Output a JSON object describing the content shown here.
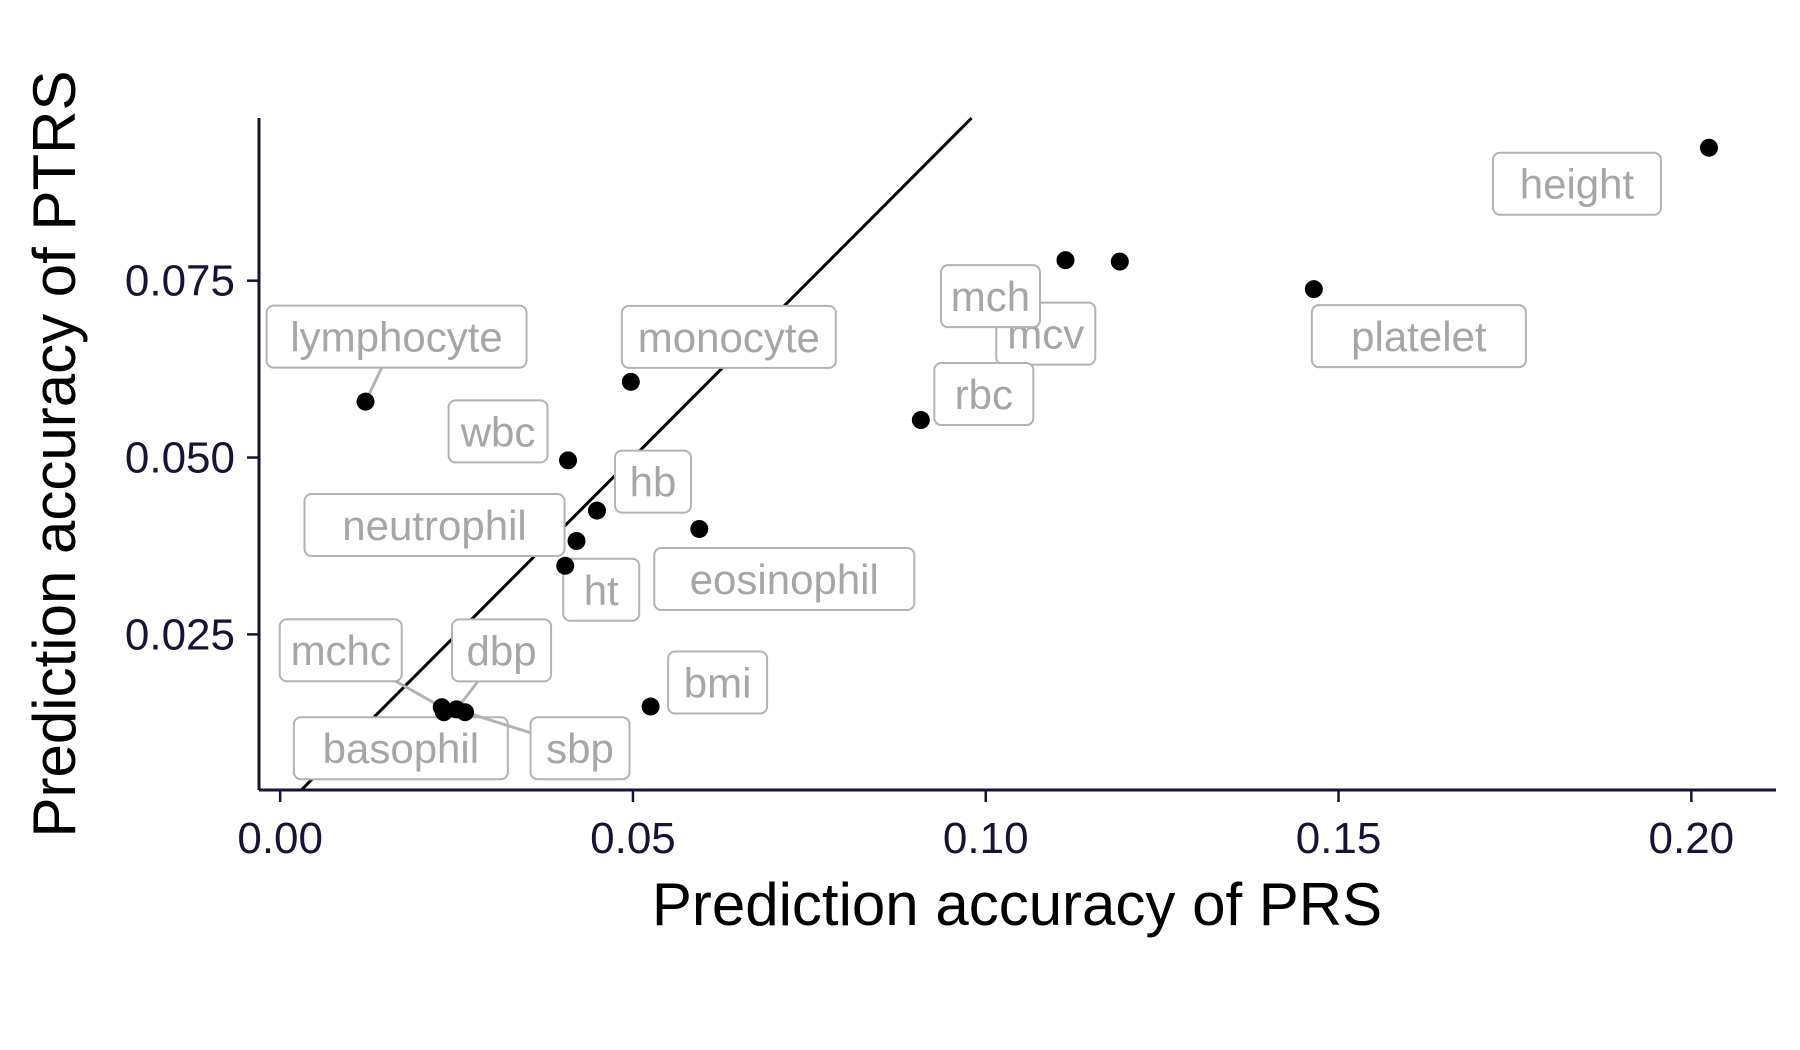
{
  "chart_data": {
    "type": "scatter",
    "xlabel": "Prediction accuracy of PRS",
    "ylabel": "Prediction accuracy of PTRS",
    "xlim": [
      -0.003,
      0.212
    ],
    "ylim": [
      0.003,
      0.098
    ],
    "x_ticks": [
      {
        "value": 0.0,
        "label": "0.00"
      },
      {
        "value": 0.05,
        "label": "0.05"
      },
      {
        "value": 0.1,
        "label": "0.10"
      },
      {
        "value": 0.15,
        "label": "0.15"
      },
      {
        "value": 0.2,
        "label": "0.20"
      }
    ],
    "y_ticks": [
      {
        "value": 0.025,
        "label": "0.025"
      },
      {
        "value": 0.05,
        "label": "0.050"
      },
      {
        "value": 0.075,
        "label": "0.075"
      }
    ],
    "reference_line": "y = x",
    "grid": false,
    "legend": "none",
    "points": [
      {
        "name": "height",
        "x": 0.2025,
        "y": 0.0938
      },
      {
        "name": "mcv",
        "x": 0.119,
        "y": 0.0777
      },
      {
        "name": "mch",
        "x": 0.1113,
        "y": 0.0779
      },
      {
        "name": "platelet",
        "x": 0.1465,
        "y": 0.0738
      },
      {
        "name": "rbc",
        "x": 0.0908,
        "y": 0.0553
      },
      {
        "name": "lymphocyte",
        "x": 0.0121,
        "y": 0.0579
      },
      {
        "name": "monocyte",
        "x": 0.0497,
        "y": 0.0607
      },
      {
        "name": "wbc",
        "x": 0.0408,
        "y": 0.0496
      },
      {
        "name": "hb",
        "x": 0.0449,
        "y": 0.0425
      },
      {
        "name": "neutrophil",
        "x": 0.042,
        "y": 0.0382
      },
      {
        "name": "ht",
        "x": 0.0404,
        "y": 0.0347
      },
      {
        "name": "eosinophil",
        "x": 0.0594,
        "y": 0.0399
      },
      {
        "name": "bmi",
        "x": 0.0525,
        "y": 0.0148
      },
      {
        "name": "mchc",
        "x": 0.0229,
        "y": 0.0147
      },
      {
        "name": "dbp",
        "x": 0.025,
        "y": 0.0144
      },
      {
        "name": "basophil",
        "x": 0.0232,
        "y": 0.014
      },
      {
        "name": "sbp",
        "x": 0.0262,
        "y": 0.014
      }
    ]
  }
}
